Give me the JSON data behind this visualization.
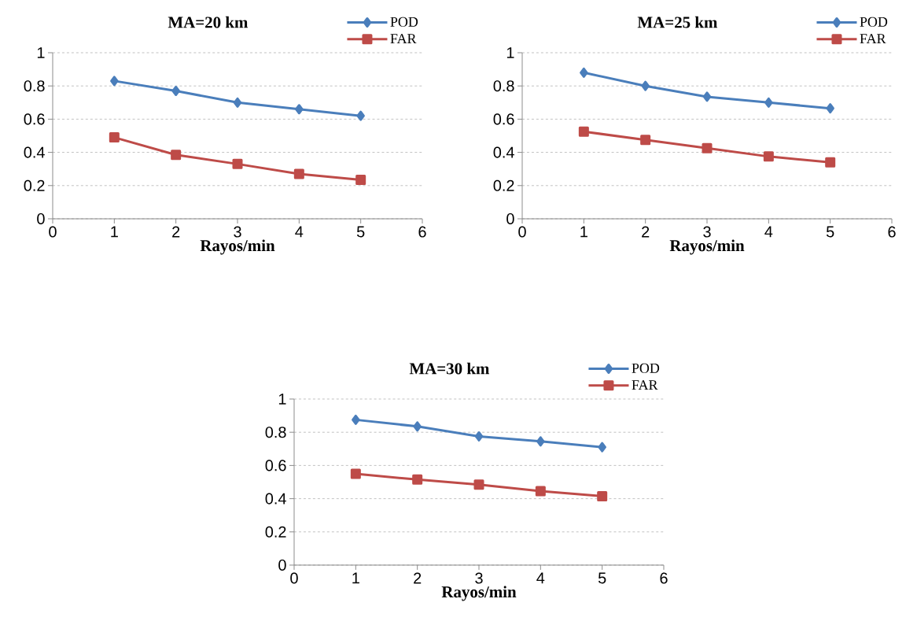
{
  "chart_data": [
    {
      "type": "line",
      "title": "MA=20 km",
      "xlabel": "Rayos/min",
      "x": [
        1,
        2,
        3,
        4,
        5
      ],
      "xlim": [
        0,
        6
      ],
      "xticks": [
        0,
        1,
        2,
        3,
        4,
        5,
        6
      ],
      "ylim": [
        0,
        1
      ],
      "yticks": [
        0,
        0.2,
        0.4,
        0.6,
        0.8,
        1
      ],
      "grid": "y",
      "legend": "top right",
      "line_style": "solid",
      "series": [
        {
          "name": "POD",
          "color": "#4a7ebb",
          "marker": "diamond",
          "values": [
            0.83,
            0.77,
            0.7,
            0.66,
            0.62
          ]
        },
        {
          "name": "FAR",
          "color": "#be4b48",
          "marker": "square",
          "values": [
            0.49,
            0.385,
            0.33,
            0.27,
            0.235
          ]
        }
      ]
    },
    {
      "type": "line",
      "title": "MA=25 km",
      "xlabel": "Rayos/min",
      "x": [
        1,
        2,
        3,
        4,
        5
      ],
      "xlim": [
        0,
        6
      ],
      "xticks": [
        0,
        1,
        2,
        3,
        4,
        5,
        6
      ],
      "ylim": [
        0,
        1
      ],
      "yticks": [
        0,
        0.2,
        0.4,
        0.6,
        0.8,
        1
      ],
      "grid": "y",
      "legend": "top right",
      "line_style": "solid",
      "series": [
        {
          "name": "POD",
          "color": "#4a7ebb",
          "marker": "diamond",
          "values": [
            0.88,
            0.8,
            0.735,
            0.7,
            0.665
          ]
        },
        {
          "name": "FAR",
          "color": "#be4b48",
          "marker": "square",
          "values": [
            0.525,
            0.475,
            0.425,
            0.375,
            0.34
          ]
        }
      ]
    },
    {
      "type": "line",
      "title": "MA=30 km",
      "xlabel": "Rayos/min",
      "x": [
        1,
        2,
        3,
        4,
        5
      ],
      "xlim": [
        0,
        6
      ],
      "xticks": [
        0,
        1,
        2,
        3,
        4,
        5,
        6
      ],
      "ylim": [
        0,
        1
      ],
      "yticks": [
        0,
        0.2,
        0.4,
        0.6,
        0.8,
        1
      ],
      "grid": "y",
      "legend": "top right",
      "line_style": "solid",
      "series": [
        {
          "name": "POD",
          "color": "#4a7ebb",
          "marker": "diamond",
          "values": [
            0.875,
            0.835,
            0.775,
            0.745,
            0.71
          ]
        },
        {
          "name": "FAR",
          "color": "#be4b48",
          "marker": "square",
          "values": [
            0.55,
            0.515,
            0.485,
            0.445,
            0.415
          ]
        }
      ]
    }
  ]
}
